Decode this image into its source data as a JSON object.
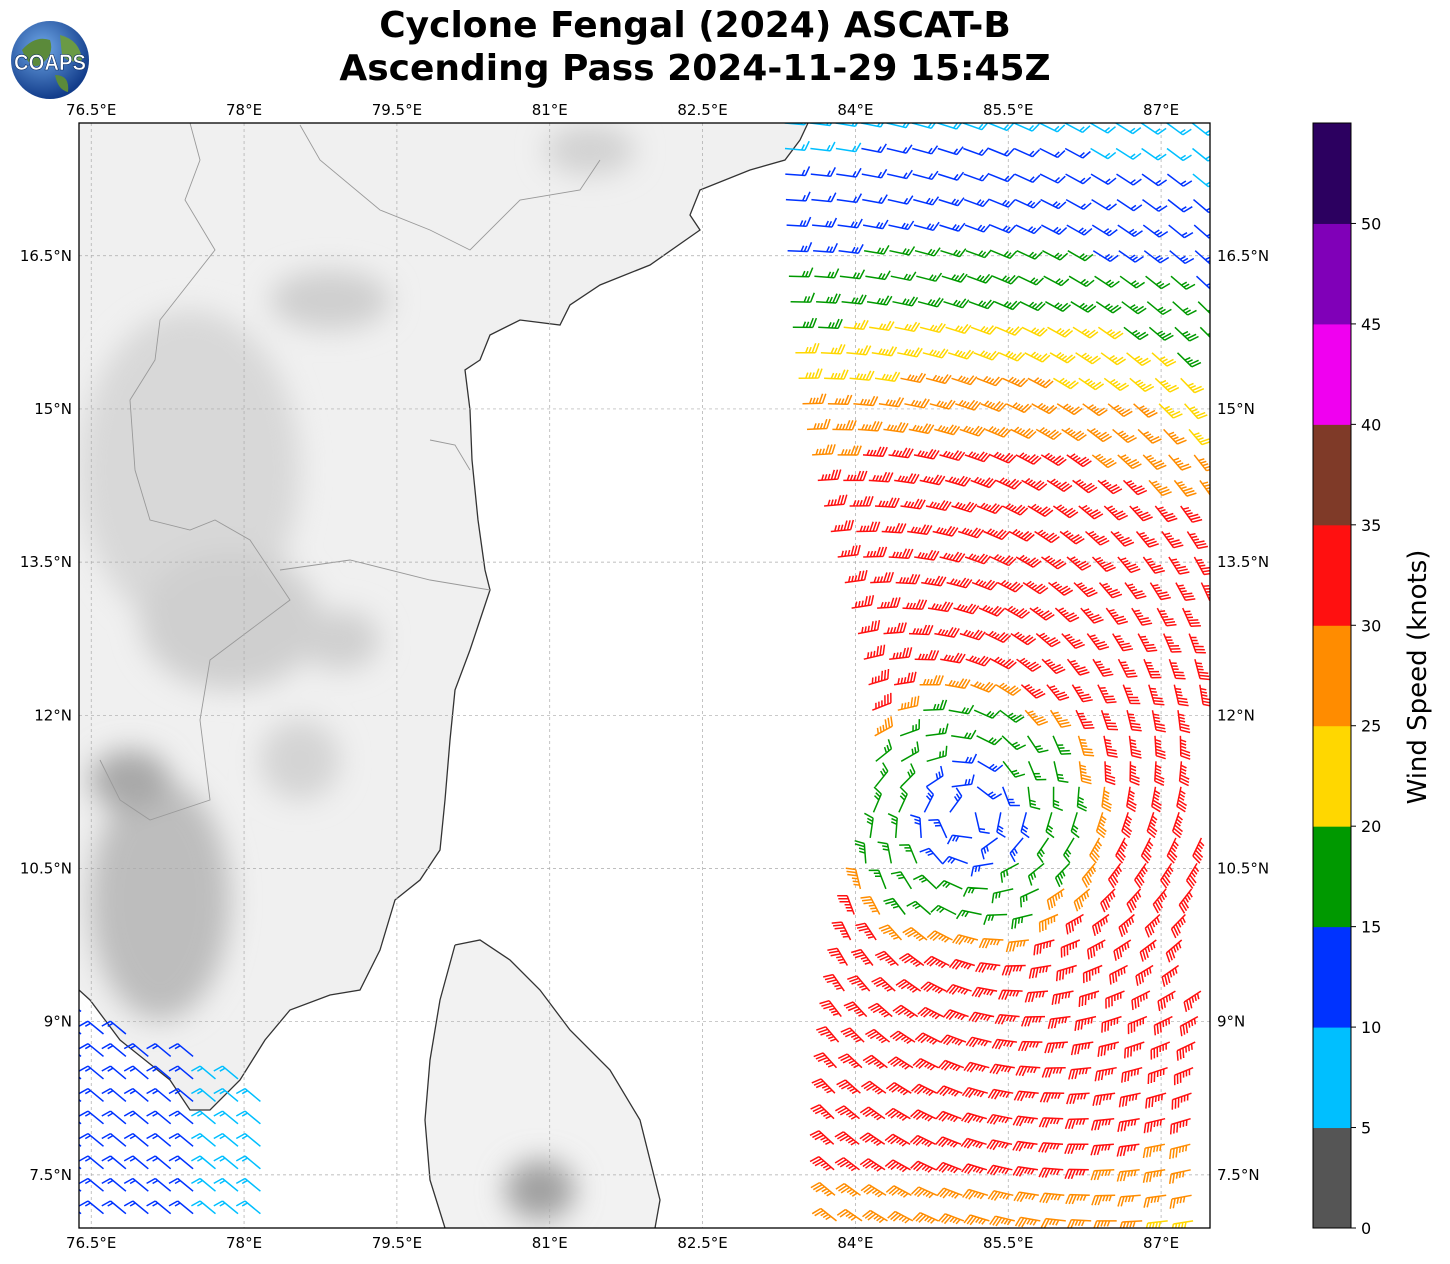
{
  "title": {
    "line1": "Cyclone Fengal (2024) ASCAT-B",
    "line2": "Ascending Pass 2024-11-29 15:45Z"
  },
  "logo": {
    "text": "COAPS",
    "icon": "globe-logo-icon"
  },
  "map": {
    "lon_range": [
      76.38,
      87.48
    ],
    "lat_range": [
      6.98,
      17.8
    ],
    "lon_ticks": [
      {
        "value": 76.5,
        "label": "76.5°E"
      },
      {
        "value": 78,
        "label": "78°E"
      },
      {
        "value": 79.5,
        "label": "79.5°E"
      },
      {
        "value": 81,
        "label": "81°E"
      },
      {
        "value": 82.5,
        "label": "82.5°E"
      },
      {
        "value": 84,
        "label": "84°E"
      },
      {
        "value": 85.5,
        "label": "85.5°E"
      },
      {
        "value": 87,
        "label": "87°E"
      }
    ],
    "lat_ticks": [
      {
        "value": 16.5,
        "label": "16.5°N"
      },
      {
        "value": 15,
        "label": "15°N"
      },
      {
        "value": 13.5,
        "label": "13.5°N"
      },
      {
        "value": 12,
        "label": "12°N"
      },
      {
        "value": 10.5,
        "label": "10.5°N"
      },
      {
        "value": 9,
        "label": "9°N"
      },
      {
        "value": 7.5,
        "label": "7.5°N"
      }
    ],
    "gridlines": true,
    "land_shading": "grey topography",
    "cyclone_center_approx": {
      "lon": 85.1,
      "lat": 11.0
    }
  },
  "colorbar": {
    "label": "Wind Speed (knots)",
    "bounds": [
      0,
      5,
      10,
      15,
      20,
      25,
      30,
      35,
      40,
      45,
      50,
      55
    ],
    "tick_labels": [
      "0",
      "5",
      "10",
      "15",
      "20",
      "25",
      "30",
      "35",
      "40",
      "45",
      "50"
    ],
    "colors": [
      "#555555",
      "#00bfff",
      "#0033ff",
      "#009900",
      "#ffd700",
      "#ff8c00",
      "#ff1010",
      "#7f3a28",
      "#f000f0",
      "#8000b8",
      "#2c0060"
    ]
  },
  "wind_barbs": {
    "units": "knots",
    "swaths": [
      {
        "name": "main",
        "lon_range": [
          83.3,
          87.4
        ],
        "lat_range": [
          7.0,
          17.8
        ]
      },
      {
        "name": "southwest",
        "lon_range": [
          76.4,
          78.3
        ],
        "lat_range": [
          7.0,
          9.1
        ]
      }
    ]
  }
}
